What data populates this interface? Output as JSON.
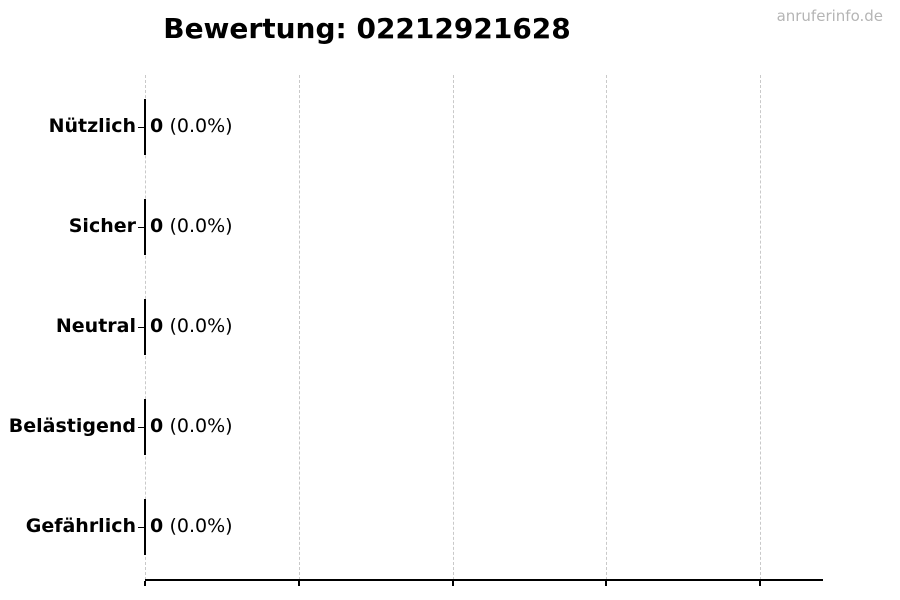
{
  "watermark": {
    "text": "anruferinfo.de"
  },
  "chart_data": {
    "type": "bar",
    "orientation": "horizontal",
    "title": "Bewertung: 02212921628",
    "categories": [
      "Nützlich",
      "Sicher",
      "Neutral",
      "Belästigend",
      "Gefährlich"
    ],
    "values": [
      0,
      0,
      0,
      0,
      0
    ],
    "percentages": [
      "0.0%",
      "0.0%",
      "0.0%",
      "0.0%",
      "0.0%"
    ],
    "annotations": [
      "0 (0.0%)",
      "0 (0.0%)",
      "0 (0.0%)",
      "0 (0.0%)",
      "0 (0.0%)"
    ],
    "rows": [
      {
        "label": "Nützlich",
        "count": "0",
        "percent": "(0.0%)"
      },
      {
        "label": "Sicher",
        "count": "0",
        "percent": "(0.0%)"
      },
      {
        "label": "Neutral",
        "count": "0",
        "percent": "(0.0%)"
      },
      {
        "label": "Belästigend",
        "count": "0",
        "percent": "(0.0%)"
      },
      {
        "label": "Gefährlich",
        "count": "0",
        "percent": "(0.0%)"
      }
    ],
    "xlabel": "",
    "ylabel": "",
    "x_tick_labels": [],
    "x_tick_count": 5,
    "grid": {
      "vertical": true,
      "style": "dashed"
    },
    "legend": "none"
  },
  "colors": {
    "background": "#ffffff",
    "text": "#000000",
    "axis": "#000000",
    "bar_edge": "#000000",
    "gridline": "#c9c9c9",
    "watermark": "#b5b5b5"
  }
}
